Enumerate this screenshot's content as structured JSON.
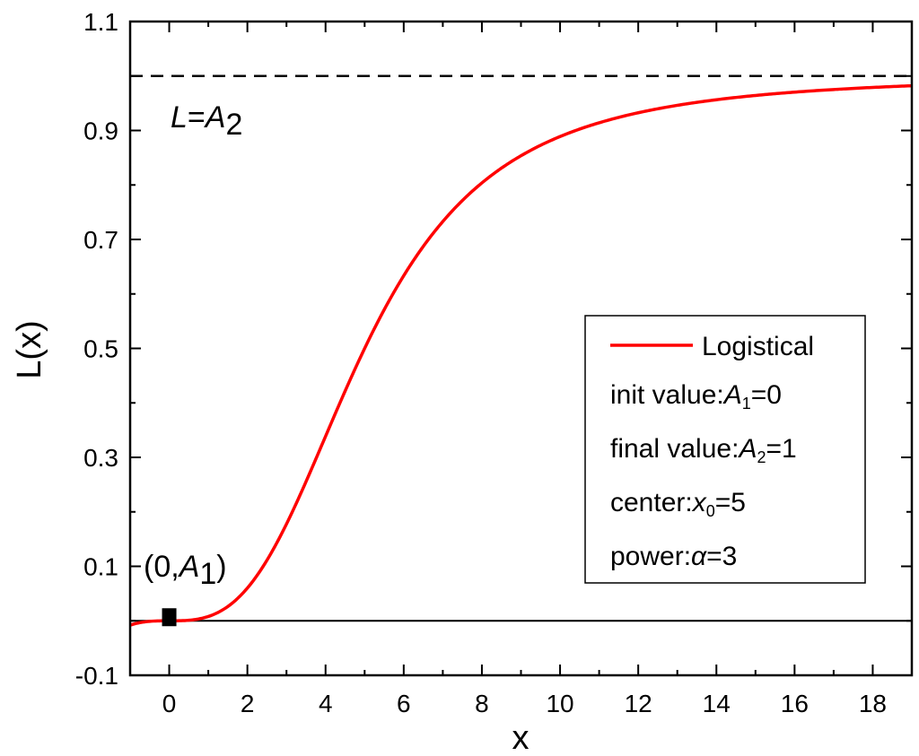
{
  "chart_data": {
    "type": "line",
    "title": "",
    "xlabel": "x",
    "ylabel": "L(x)",
    "xlim": [
      -1,
      19
    ],
    "ylim": [
      -0.1,
      1.1
    ],
    "x_ticks": [
      0,
      2,
      4,
      6,
      8,
      10,
      12,
      14,
      16,
      18
    ],
    "x_tick_labels": [
      "0",
      "2",
      "4",
      "6",
      "8",
      "10",
      "12",
      "14",
      "16",
      "18"
    ],
    "y_ticks": [
      -0.1,
      0.1,
      0.3,
      0.5,
      0.7,
      0.9,
      1.1
    ],
    "y_tick_labels": [
      "-0.1",
      "0.1",
      "0.3",
      "0.5",
      "0.7",
      "0.9",
      "1.1"
    ],
    "grid": false,
    "legend_position": "center-right",
    "series": [
      {
        "name": "Logistical",
        "color": "#ff0000",
        "function": "logistic",
        "params": {
          "A1": 0,
          "A2": 1,
          "x0": 5,
          "p": 3
        },
        "x": [
          -1,
          0,
          1,
          2,
          3,
          4,
          5,
          6,
          7,
          8,
          9,
          10,
          11,
          12,
          13,
          14,
          15,
          16,
          17,
          18,
          19
        ],
        "y": [
          -0.008,
          0,
          0.008,
          0.06,
          0.18,
          0.34,
          0.5,
          0.63,
          0.73,
          0.81,
          0.85,
          0.89,
          0.91,
          0.93,
          0.94,
          0.95,
          0.96,
          0.965,
          0.97,
          0.975,
          0.98
        ]
      }
    ],
    "reference_lines": [
      {
        "orientation": "horizontal",
        "y": 1.0,
        "style": "dashed",
        "label": "L=A2"
      },
      {
        "orientation": "horizontal",
        "y": 0.0,
        "style": "solid"
      }
    ],
    "marker": {
      "x": 0,
      "y": 0,
      "shape": "square",
      "label": "(0,A1)"
    },
    "legend": {
      "series_label": "Logistical",
      "lines": [
        {
          "prefix": "init value:",
          "sym": "A",
          "sub": "1",
          "suffix": "=0"
        },
        {
          "prefix": "final value:",
          "sym": "A",
          "sub": "2",
          "suffix": "=1"
        },
        {
          "prefix": "center:",
          "sym": "x",
          "sub": "0",
          "suffix": "=5"
        },
        {
          "prefix": "power:",
          "sym": "α",
          "sub": "",
          "suffix": "=3"
        }
      ]
    },
    "annotations": {
      "upper_line": {
        "sym": "L",
        "eq": "=",
        "sym2": "A",
        "sub": "2"
      },
      "point": {
        "open": "(0,",
        "sym": "A",
        "sub": "1",
        "close": ")"
      }
    }
  }
}
